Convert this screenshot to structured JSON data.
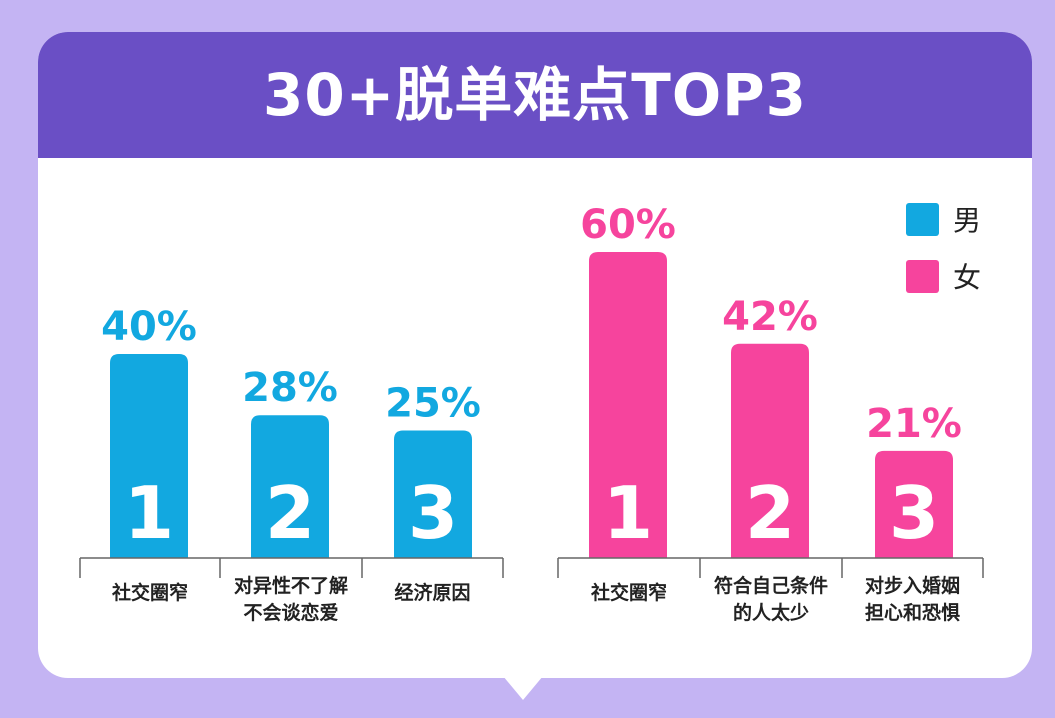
{
  "title": "30+脱单难点TOP3",
  "colors": {
    "male": "#12a8e0",
    "female": "#f6449d",
    "header": "#6a4fc5",
    "background": "#c4b4f3"
  },
  "legend": [
    {
      "label": "男",
      "color": "#12a8e0"
    },
    {
      "label": "女",
      "color": "#f6449d"
    }
  ],
  "chart_data": [
    {
      "type": "bar",
      "series": [
        {
          "name": "男",
          "values": [
            40,
            28,
            25
          ]
        }
      ],
      "categories": [
        "社交圈窄",
        "对异性不了解\n不会谈恋爱",
        "经济原因"
      ],
      "value_labels": [
        "40%",
        "28%",
        "25%"
      ],
      "ranks": [
        "1",
        "2",
        "3"
      ],
      "ylim": [
        0,
        60
      ],
      "grid": false
    },
    {
      "type": "bar",
      "series": [
        {
          "name": "女",
          "values": [
            60,
            42,
            21
          ]
        }
      ],
      "categories": [
        "社交圈窄",
        "符合自己条件\n的人太少",
        "对步入婚姻\n担心和恐惧"
      ],
      "value_labels": [
        "60%",
        "42%",
        "21%"
      ],
      "ranks": [
        "1",
        "2",
        "3"
      ],
      "ylim": [
        0,
        60
      ],
      "grid": false
    }
  ]
}
